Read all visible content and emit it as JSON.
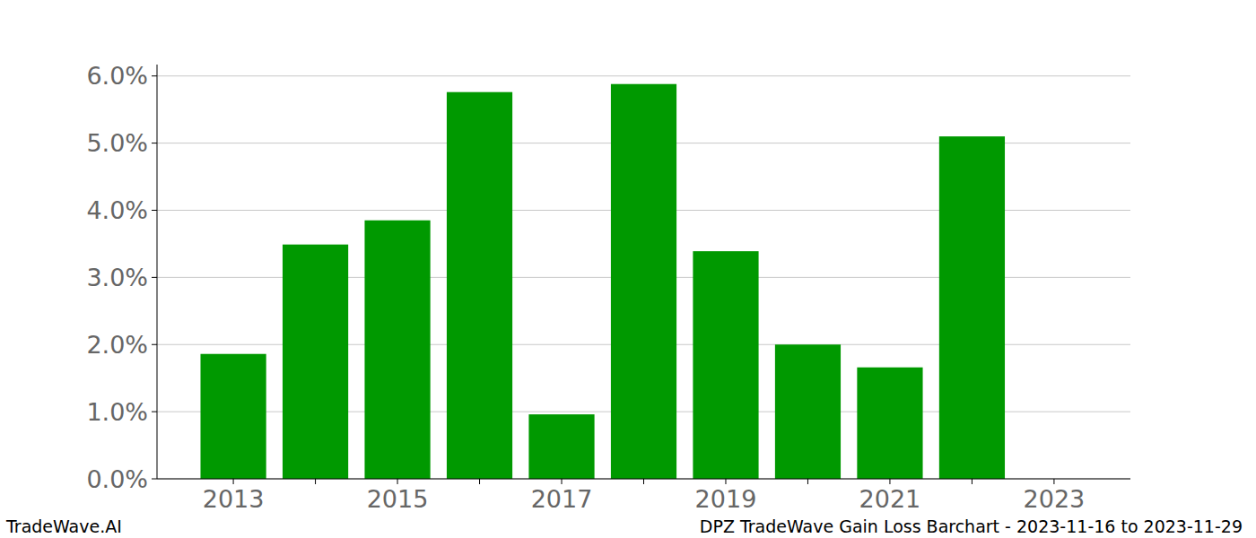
{
  "chart_data": {
    "type": "bar",
    "title": "DPZ TradeWave Gain Loss Barchart - 2023-11-16 to 2023-11-29",
    "annotations": [
      "TradeWave.AI"
    ],
    "categories": [
      "2013",
      null,
      "2015",
      null,
      "2017",
      null,
      "2019",
      null,
      "2021",
      null,
      "2023"
    ],
    "values": [
      1.86,
      3.49,
      3.85,
      5.76,
      0.96,
      5.88,
      3.39,
      2.0,
      1.66,
      5.1,
      null
    ],
    "color": "#009900",
    "ylim": [
      0,
      6.17
    ],
    "yticks": [
      {
        "value": 0,
        "label": "0.0%"
      },
      {
        "value": 1,
        "label": "1.0%"
      },
      {
        "value": 2,
        "label": "2.0%"
      },
      {
        "value": 3,
        "label": "3.0%"
      },
      {
        "value": 4,
        "label": "4.0%"
      },
      {
        "value": 5,
        "label": "5.0%"
      },
      {
        "value": 6,
        "label": "6.0%"
      }
    ],
    "grid": true
  }
}
